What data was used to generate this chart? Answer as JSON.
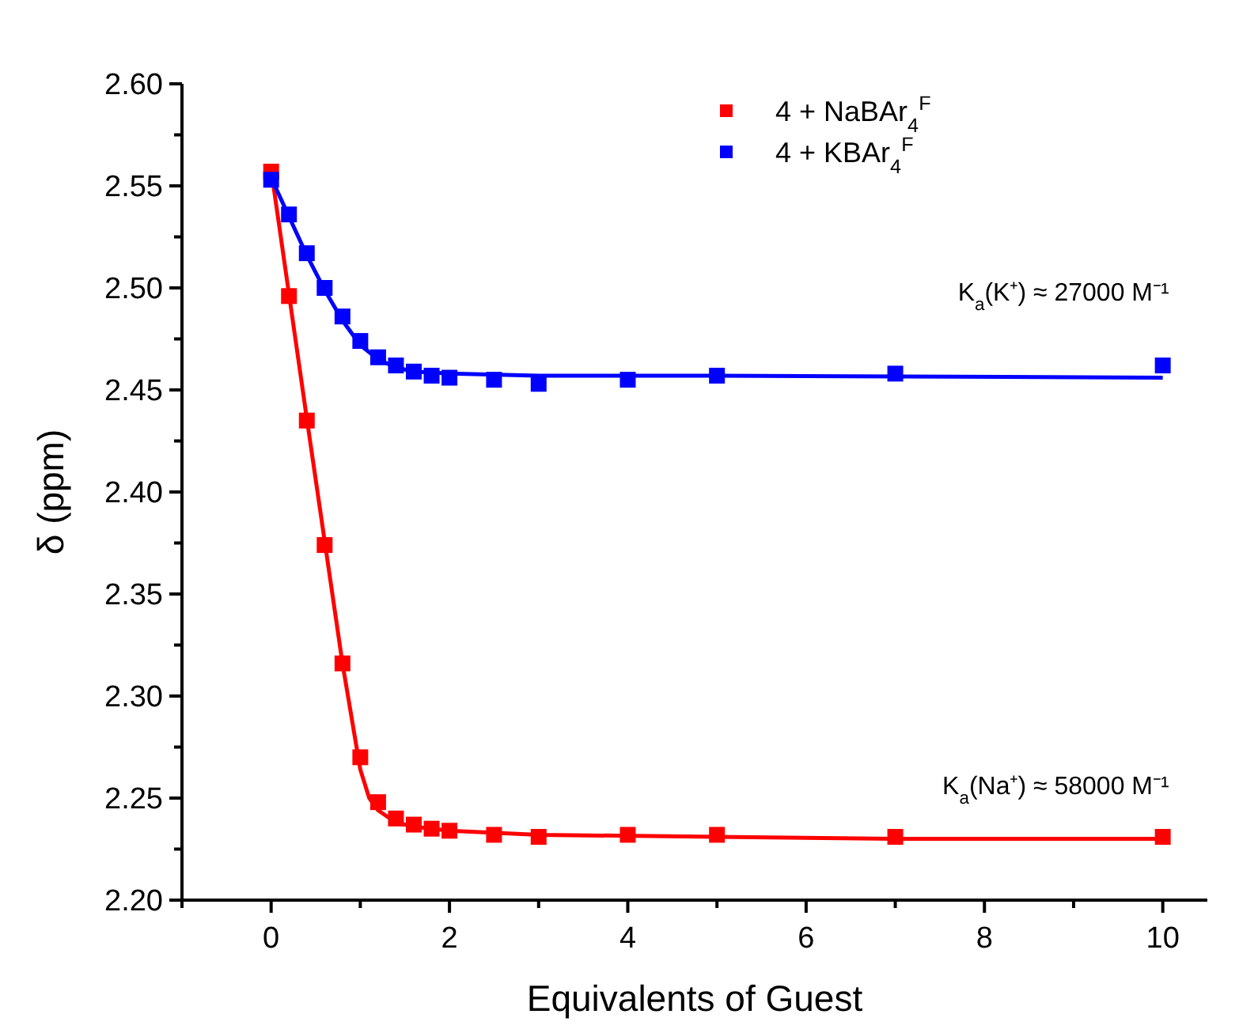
{
  "chart_data": {
    "type": "scatter",
    "xlabel": "Equivalents of Guest",
    "ylabel": "δ (ppm)",
    "xlim": [
      -1,
      10.5
    ],
    "ylim": [
      2.2,
      2.6
    ],
    "xticks": [
      {
        "value": -1,
        "label": null
      },
      0,
      {
        "value": 1,
        "label": null
      },
      2,
      {
        "value": 3,
        "label": null
      },
      4,
      {
        "value": 5,
        "label": null
      },
      6,
      {
        "value": 7,
        "label": null
      },
      8,
      {
        "value": 9,
        "label": null
      },
      10
    ],
    "yticks": [
      {
        "value": 2.2,
        "label": "2.20"
      },
      {
        "value": 2.225,
        "label": null
      },
      {
        "value": 2.25,
        "label": "2.25"
      },
      {
        "value": 2.275,
        "label": null
      },
      {
        "value": 2.3,
        "label": "2.30"
      },
      {
        "value": 2.325,
        "label": null
      },
      {
        "value": 2.35,
        "label": "2.35"
      },
      {
        "value": 2.375,
        "label": null
      },
      {
        "value": 2.4,
        "label": "2.40"
      },
      {
        "value": 2.425,
        "label": null
      },
      {
        "value": 2.45,
        "label": "2.45"
      },
      {
        "value": 2.475,
        "label": null
      },
      {
        "value": 2.5,
        "label": "2.50"
      },
      {
        "value": 2.525,
        "label": null
      },
      {
        "value": 2.55,
        "label": "2.55"
      },
      {
        "value": 2.575,
        "label": null
      },
      {
        "value": 2.6,
        "label": "2.60"
      }
    ],
    "grid": false,
    "legend": "top right",
    "marker": "square",
    "series": [
      {
        "type": "line",
        "marker": "none",
        "color": "#ff0000",
        "x": [
          0,
          0.2,
          0.4,
          0.6,
          0.8,
          1.0,
          1.1,
          1.2,
          1.4,
          1.6,
          2,
          3,
          5,
          7,
          10
        ],
        "values": [
          2.558,
          2.497,
          2.436,
          2.376,
          2.316,
          2.264,
          2.25,
          2.244,
          2.238,
          2.236,
          2.234,
          2.232,
          2.231,
          2.23,
          2.23
        ]
      },
      {
        "type": "line",
        "marker": "none",
        "color": "#0000ff",
        "x": [
          0,
          0.2,
          0.4,
          0.6,
          0.8,
          1.0,
          1.2,
          1.4,
          1.6,
          2,
          3,
          5,
          10
        ],
        "values": [
          2.554,
          2.535,
          2.516,
          2.499,
          2.484,
          2.472,
          2.465,
          2.461,
          2.459,
          2.458,
          2.457,
          2.457,
          2.456
        ]
      },
      {
        "name": "4 + NaBAr$_{4}$$^{F}$",
        "color": "#ff0000",
        "x": [
          0,
          0.2,
          0.4,
          0.6,
          0.8,
          1.0,
          1.2,
          1.4,
          1.6,
          1.8,
          2.0,
          2.5,
          3,
          4,
          5,
          7,
          10
        ],
        "values": [
          2.557,
          2.496,
          2.435,
          2.374,
          2.316,
          2.27,
          2.248,
          2.24,
          2.237,
          2.235,
          2.234,
          2.232,
          2.231,
          2.232,
          2.232,
          2.231,
          2.231
        ]
      },
      {
        "name": "4 + KBAr$_{4}$$^{F}$",
        "color": "#0000ff",
        "x": [
          0,
          0.2,
          0.4,
          0.6,
          0.8,
          1.0,
          1.2,
          1.4,
          1.6,
          1.8,
          2.0,
          2.5,
          3,
          4,
          5,
          7,
          10
        ],
        "values": [
          2.553,
          2.536,
          2.517,
          2.5,
          2.486,
          2.474,
          2.466,
          2.462,
          2.459,
          2.457,
          2.456,
          2.455,
          2.453,
          2.455,
          2.457,
          2.458,
          2.462
        ]
      }
    ],
    "annotations": [
      "K$_{a}$(K⁺) ≈ 27000 M⁻¹",
      "K$_{a}$(Na⁺) ≈ 58000 M⁻¹"
    ]
  }
}
